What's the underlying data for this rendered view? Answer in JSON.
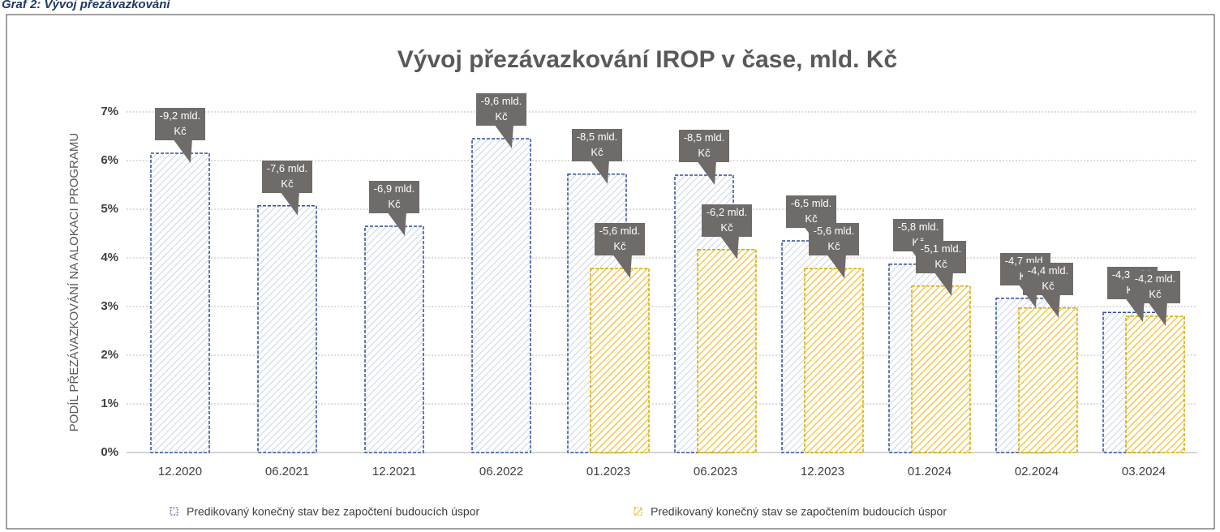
{
  "caption": "Graf 2: Vývoj přezávazkování",
  "chart_data": {
    "type": "bar",
    "title": "Vývoj přezávazkování IROP v čase, mld. Kč",
    "y_label": "PODÍL PŘEZÁVAZKOVÁNÍ NA ALOKACI PROGRAMU",
    "categories": [
      "12.2020",
      "06.2021",
      "12.2021",
      "06.2022",
      "01.2023",
      "06.2023",
      "12.2023",
      "01.2024",
      "02.2024",
      "03.2024"
    ],
    "series": [
      {
        "name": "Predikovaný konečný stav bez započtení budoucích úspor",
        "color": "#2f4f9a",
        "fill": "#c9d3e6",
        "values": [
          6.15,
          5.07,
          4.65,
          6.45,
          5.72,
          5.7,
          4.35,
          3.87,
          3.17,
          2.88
        ],
        "callouts": [
          "-9,2 mld. Kč",
          "-7,6 mld. Kč",
          "-6,9 mld. Kč",
          "-9,6 mld. Kč",
          "-8,5 mld. Kč",
          "-8,5 mld. Kč",
          "-6,5 mld. Kč",
          "-5,8 mld. Kč",
          "-4,7 mld. Kč",
          "-4,3 mld. Kč"
        ]
      },
      {
        "name": "Predikovaný konečný stav se započtením budoucích úspor",
        "color": "#d4a900",
        "fill": "#f2c94c",
        "values": [
          null,
          null,
          null,
          null,
          3.78,
          4.17,
          3.78,
          3.42,
          2.97,
          2.8
        ],
        "callouts": [
          null,
          null,
          null,
          null,
          "-5,6 mld. Kč",
          "-6,2 mld. Kč",
          "-5,6 mld. Kč",
          "-5,1 mld. Kč",
          "-4,4 mld. Kč",
          "-4,2 mld. Kč"
        ]
      }
    ],
    "ylim": [
      0,
      7
    ],
    "yticks": [
      {
        "value": 0,
        "label": "0%"
      },
      {
        "value": 1,
        "label": "1%"
      },
      {
        "value": 2,
        "label": "2%"
      },
      {
        "value": 3,
        "label": "3%"
      },
      {
        "value": 4,
        "label": "4%"
      },
      {
        "value": 5,
        "label": "5%"
      },
      {
        "value": 6,
        "label": "6%"
      },
      {
        "value": 7,
        "label": "7%"
      }
    ],
    "grid": true,
    "legend": "bottom"
  }
}
